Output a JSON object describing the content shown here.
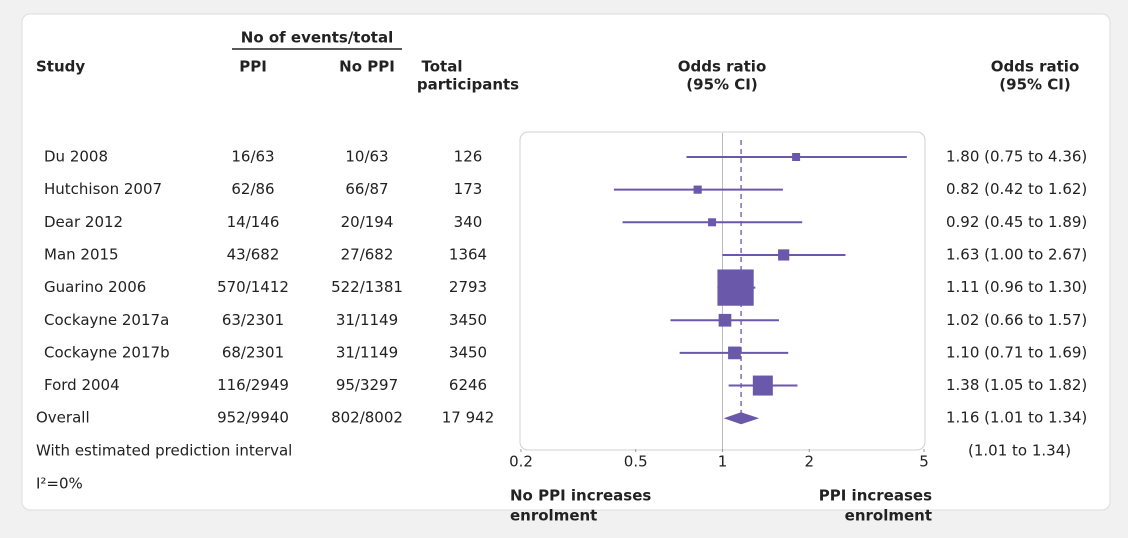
{
  "chart_data": {
    "type": "forest",
    "headers": {
      "study": "Study",
      "events_group": "No of events/total",
      "ppi": "PPI",
      "no_ppi": "No PPI",
      "total": [
        "Total",
        "participants"
      ],
      "plot": [
        "Odds ratio",
        "(95% CI)"
      ],
      "ci": [
        "Odds ratio",
        "(95% CI)"
      ]
    },
    "categories": [
      "Du 2008",
      "Hutchison 2007",
      "Dear 2012",
      "Man 2015",
      "Guarino 2006",
      "Cockayne 2017a",
      "Cockayne 2017b",
      "Ford 2004",
      "Overall"
    ],
    "ppi_events": [
      "16/63",
      "62/86",
      "14/146",
      "43/682",
      "570/1412",
      "63/2301",
      "68/2301",
      "116/2949",
      "952/9940"
    ],
    "no_ppi_events": [
      "10/63",
      "66/87",
      "20/194",
      "27/682",
      "522/1381",
      "31/1149",
      "31/1149",
      "95/3297",
      "802/8002"
    ],
    "total": [
      126,
      173,
      340,
      1364,
      2793,
      3450,
      3450,
      6246,
      17942
    ],
    "total_labels": [
      "126",
      "173",
      "340",
      "1364",
      "2793",
      "3450",
      "3450",
      "6246",
      "17 942"
    ],
    "or": [
      1.8,
      0.82,
      0.92,
      1.63,
      1.11,
      1.02,
      1.1,
      1.38,
      1.16
    ],
    "ci_low": [
      0.75,
      0.42,
      0.45,
      1.0,
      0.96,
      0.66,
      0.71,
      1.05,
      1.01
    ],
    "ci_high": [
      4.36,
      1.62,
      1.89,
      2.67,
      1.3,
      1.57,
      1.69,
      1.82,
      1.34
    ],
    "ci_labels": [
      "1.80 (0.75 to 4.36)",
      "0.82 (0.42 to 1.62)",
      "0.92 (0.45 to 1.89)",
      "1.63 (1.00 to 2.67)",
      "1.11 (0.96 to 1.30)",
      "1.02 (0.66 to 1.57)",
      "1.10 (0.71 to 1.69)",
      "1.38 (1.05 to 1.82)",
      "1.16 (1.01 to 1.34)"
    ],
    "prediction_text": "With estimated prediction interval",
    "prediction_label": "(1.01 to 1.34)",
    "heterogeneity": "I²=0%",
    "xlim": [
      0.2,
      5
    ],
    "xticks": [
      0.2,
      0.5,
      1,
      2,
      5
    ],
    "log_x": true,
    "reference": 1,
    "left_label": [
      "No PPI increases",
      "enrolment"
    ],
    "right_label": [
      "PPI increases",
      "enrolment"
    ],
    "color": "#6a58aa"
  }
}
